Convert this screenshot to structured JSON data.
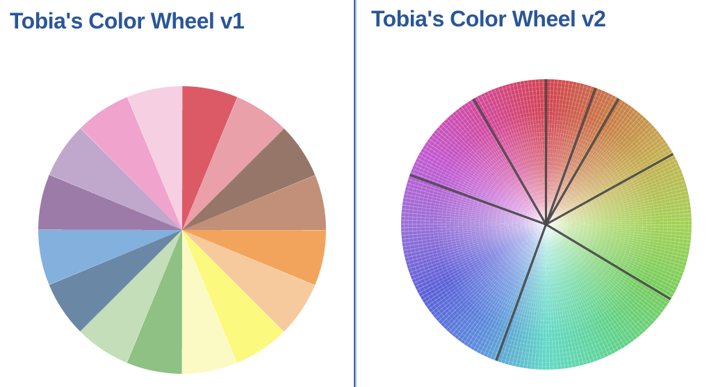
{
  "app": {
    "background": "#ffffff"
  },
  "divider": {
    "color_dark": "#44609f",
    "color_light": "#a9c0e8"
  },
  "panels": {
    "left": {
      "title": "Tobia's Color Wheel v1",
      "title_color": "#2a5699"
    },
    "right": {
      "title": "Tobia's Color Wheel v2",
      "title_color": "#2a5699"
    }
  },
  "chart_data": [
    {
      "type": "pie",
      "title": "Tobia's Color Wheel v1",
      "description": "16 equal pie slices of 22.5 degrees each, starting at 12 o'clock and running clockwise; saturated and pastel tone pairs around the hue circle",
      "start_angle_deg": 0,
      "direction": "clockwise",
      "slice_angle_deg": 22.5,
      "categories": [
        "red",
        "light red",
        "brown",
        "light brown",
        "orange",
        "light orange",
        "yellow",
        "light yellow",
        "green",
        "light green",
        "blue gray",
        "light blue",
        "purple",
        "light purple",
        "pink",
        "light pink"
      ],
      "values": [
        1,
        1,
        1,
        1,
        1,
        1,
        1,
        1,
        1,
        1,
        1,
        1,
        1,
        1,
        1,
        1
      ],
      "colors": [
        "#dc5a66",
        "#e9a0a9",
        "#967669",
        "#c28f78",
        "#f2a45c",
        "#f7ca9e",
        "#fcfa7e",
        "#fbfac4",
        "#8ec183",
        "#c3deb9",
        "#6a88a6",
        "#84b0dd",
        "#9c7ba8",
        "#c0a8cc",
        "#f0a3cc",
        "#f7cfe3"
      ],
      "legend": false
    },
    {
      "type": "pie",
      "title": "Tobia's Color Wheel v2",
      "description": "Continuous HSV hue wheel: hue increases clockwise from red at the top; colors fade to white at the center; fine moire spoke/ring texture; 8 unequal wedges separated by dark radial border lines",
      "start_angle_deg": 0,
      "direction": "clockwise",
      "hue_ring_stops": [
        {
          "angle_deg": 0,
          "color": "#d24250"
        },
        {
          "angle_deg": 30,
          "color": "#c87a45"
        },
        {
          "angle_deg": 60,
          "color": "#c4b050"
        },
        {
          "angle_deg": 90,
          "color": "#a2d156"
        },
        {
          "angle_deg": 120,
          "color": "#76cc5c"
        },
        {
          "angle_deg": 150,
          "color": "#5fd28d"
        },
        {
          "angle_deg": 180,
          "color": "#62d8c6"
        },
        {
          "angle_deg": 210,
          "color": "#5b8bdc"
        },
        {
          "angle_deg": 240,
          "color": "#5a5fd8"
        },
        {
          "angle_deg": 270,
          "color": "#9a70d8"
        },
        {
          "angle_deg": 300,
          "color": "#c257d0"
        },
        {
          "angle_deg": 330,
          "color": "#d2479c"
        },
        {
          "angle_deg": 360,
          "color": "#d24250"
        }
      ],
      "wedge_boundaries_deg": [
        0,
        20,
        30,
        61,
        121,
        200,
        290,
        330
      ],
      "wedge_spans_deg": [
        20,
        10,
        31,
        60,
        79,
        90,
        40,
        30
      ],
      "boundary_line_color": "#3b3b3b",
      "center_color": "#ffffff",
      "legend": false
    }
  ]
}
